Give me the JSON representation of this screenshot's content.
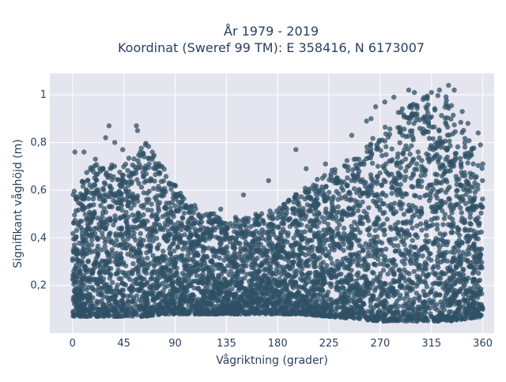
{
  "chart_data": {
    "type": "scatter",
    "title": [
      "År 1979 - 2019",
      "Koordinat (Sweref 99 TM): E 358416, N 6173007"
    ],
    "xlabel": "Vågriktning (grader)",
    "ylabel": "Signifikant våghöjd (m)",
    "xlim": [
      -20,
      370
    ],
    "ylim": [
      0,
      1.09
    ],
    "xticks": [
      0,
      45,
      90,
      135,
      180,
      225,
      270,
      315,
      360
    ],
    "xtick_labels": [
      "0",
      "45",
      "90",
      "135",
      "180",
      "225",
      "270",
      "315",
      "360"
    ],
    "yticks": [
      0.2,
      0.4,
      0.6,
      0.8,
      1.0
    ],
    "ytick_labels": [
      "0,2",
      "0,4",
      "0,6",
      "0,8",
      "1"
    ],
    "grid": true,
    "legend": "none",
    "marker_color": "#2f5066",
    "background_color": "#e5e5ef",
    "envelope": {
      "description_direction_deg": [
        0,
        20,
        45,
        65,
        80,
        100,
        135,
        160,
        180,
        200,
        225,
        250,
        270,
        290,
        310,
        330,
        345,
        360
      ],
      "upper_bound_m": [
        0.6,
        0.72,
        0.72,
        0.8,
        0.7,
        0.55,
        0.48,
        0.5,
        0.52,
        0.6,
        0.68,
        0.75,
        0.85,
        0.95,
        1.0,
        1.0,
        0.85,
        0.7
      ],
      "lower_bound_m": [
        0.07,
        0.07,
        0.07,
        0.07,
        0.08,
        0.08,
        0.08,
        0.08,
        0.08,
        0.08,
        0.07,
        0.06,
        0.05,
        0.05,
        0.05,
        0.05,
        0.06,
        0.07
      ]
    },
    "outliers": [
      {
        "x": 2,
        "y": 0.76
      },
      {
        "x": 10,
        "y": 0.76
      },
      {
        "x": 20,
        "y": 0.73
      },
      {
        "x": 29,
        "y": 0.82
      },
      {
        "x": 32,
        "y": 0.87
      },
      {
        "x": 37,
        "y": 0.8
      },
      {
        "x": 44,
        "y": 0.77
      },
      {
        "x": 56,
        "y": 0.87
      },
      {
        "x": 57,
        "y": 0.85
      },
      {
        "x": 64,
        "y": 0.79
      },
      {
        "x": 70,
        "y": 0.76
      },
      {
        "x": 77,
        "y": 0.7
      },
      {
        "x": 130,
        "y": 0.52
      },
      {
        "x": 150,
        "y": 0.58
      },
      {
        "x": 172,
        "y": 0.64
      },
      {
        "x": 196,
        "y": 0.77
      },
      {
        "x": 205,
        "y": 0.69
      },
      {
        "x": 222,
        "y": 0.71
      },
      {
        "x": 245,
        "y": 0.83
      },
      {
        "x": 258,
        "y": 0.89
      },
      {
        "x": 262,
        "y": 0.9
      },
      {
        "x": 266,
        "y": 0.95
      },
      {
        "x": 274,
        "y": 0.97
      },
      {
        "x": 282,
        "y": 0.99
      },
      {
        "x": 295,
        "y": 1.02
      },
      {
        "x": 300,
        "y": 1.01
      },
      {
        "x": 315,
        "y": 1.01
      },
      {
        "x": 322,
        "y": 1.02
      },
      {
        "x": 330,
        "y": 1.04
      },
      {
        "x": 335,
        "y": 1.02
      },
      {
        "x": 342,
        "y": 0.93
      },
      {
        "x": 347,
        "y": 0.88
      },
      {
        "x": 356,
        "y": 0.84
      },
      {
        "x": 358,
        "y": 0.79
      },
      {
        "x": 360,
        "y": 0.71
      }
    ]
  }
}
